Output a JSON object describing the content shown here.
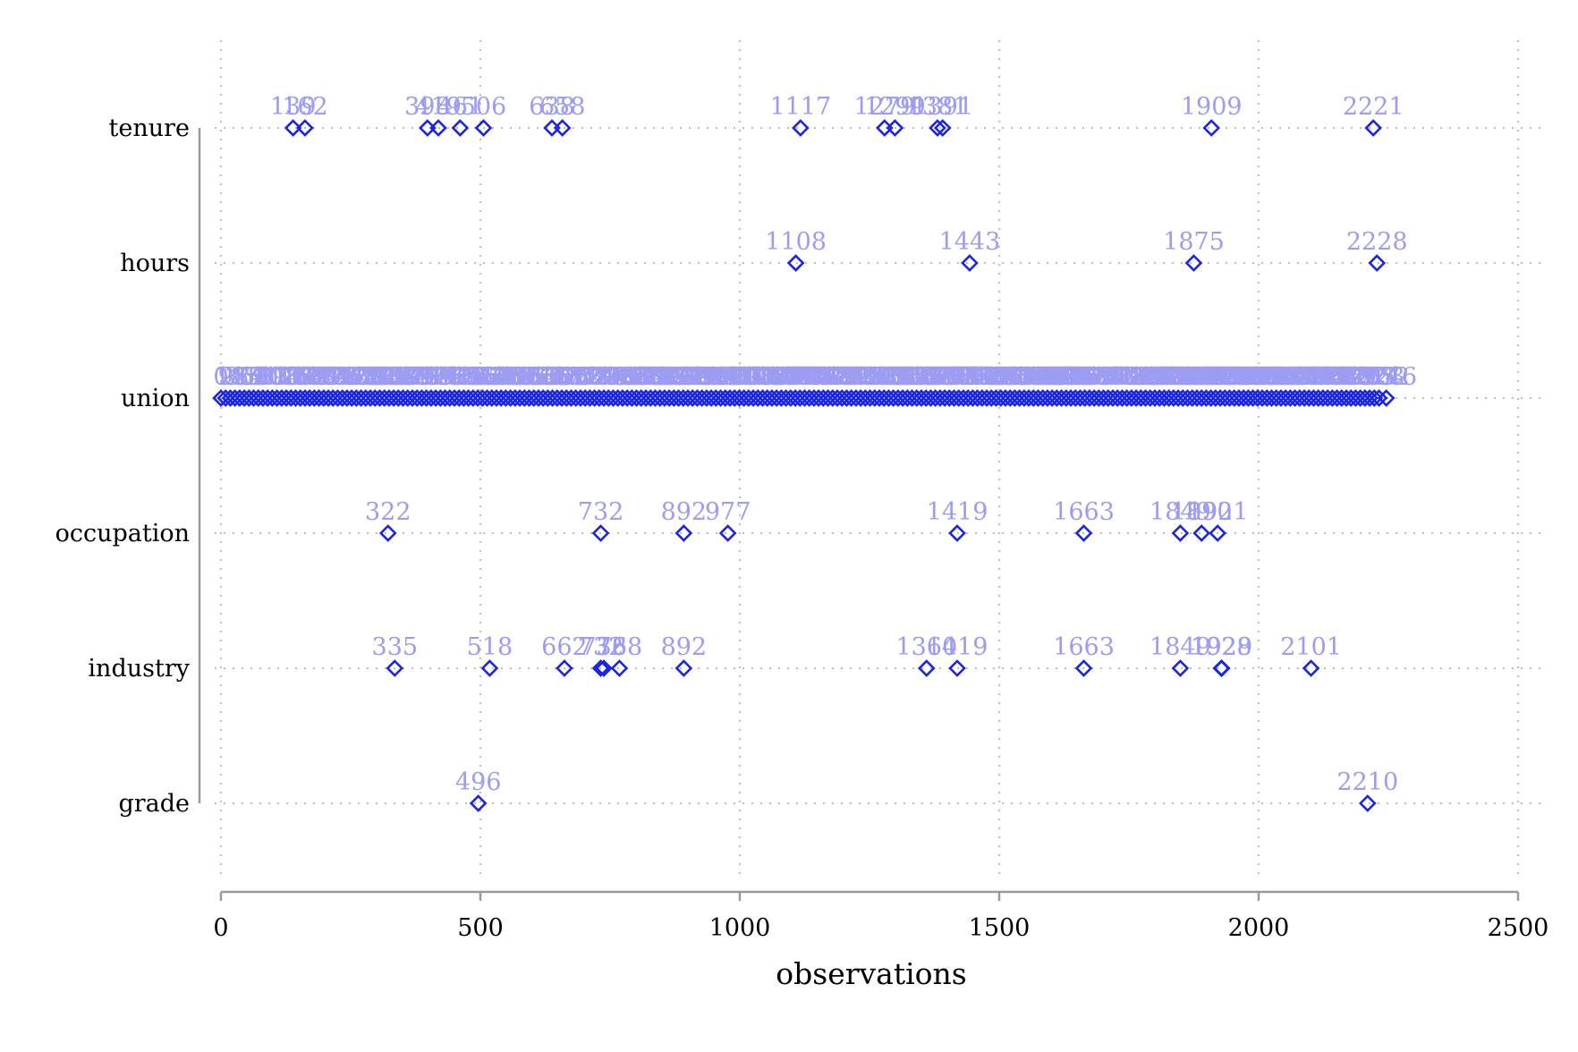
{
  "chart_data": {
    "type": "scatter",
    "title": "",
    "xlabel": "observations",
    "ylabel": "",
    "xlim": [
      0,
      2500
    ],
    "xticks": [
      "0",
      "500",
      "1000",
      "1500",
      "2000",
      "2500"
    ],
    "categories": [
      "tenure",
      "hours",
      "union",
      "occupation",
      "industry",
      "grade"
    ],
    "grid": true,
    "series": [
      {
        "category": "tenure",
        "points": [
          139,
          162,
          398,
          419,
          461,
          506,
          638,
          658,
          1117,
          1279,
          1299,
          1381,
          1391,
          1909,
          2221
        ]
      },
      {
        "category": "hours",
        "points": [
          1108,
          1443,
          1875,
          2228
        ]
      },
      {
        "category": "union",
        "points": [
          0,
          9,
          18,
          27,
          36,
          45,
          54,
          63,
          72,
          81,
          90,
          99,
          108,
          117,
          126,
          135,
          144,
          153,
          162,
          171,
          180,
          189,
          198,
          207,
          216,
          225,
          234,
          243,
          252,
          261,
          270,
          279,
          288,
          297,
          306,
          315,
          324,
          333,
          342,
          351,
          360,
          369,
          378,
          387,
          396,
          405,
          414,
          423,
          432,
          441,
          450,
          459,
          468,
          477,
          486,
          495,
          504,
          513,
          522,
          531,
          540,
          549,
          558,
          567,
          576,
          585,
          594,
          603,
          612,
          621,
          630,
          639,
          648,
          657,
          666,
          675,
          684,
          693,
          702,
          711,
          720,
          729,
          738,
          747,
          756,
          765,
          774,
          783,
          792,
          801,
          810,
          819,
          828,
          837,
          846,
          855,
          864,
          873,
          882,
          891,
          900,
          909,
          918,
          927,
          936,
          945,
          954,
          963,
          972,
          981,
          990,
          999,
          1008,
          1017,
          1026,
          1035,
          1044,
          1053,
          1062,
          1071,
          1080,
          1089,
          1098,
          1107,
          1116,
          1125,
          1134,
          1143,
          1152,
          1161,
          1170,
          1179,
          1188,
          1197,
          1206,
          1215,
          1224,
          1233,
          1242,
          1251,
          1260,
          1269,
          1278,
          1287,
          1296,
          1305,
          1314,
          1323,
          1332,
          1341,
          1350,
          1359,
          1368,
          1377,
          1386,
          1395,
          1404,
          1413,
          1422,
          1431,
          1440,
          1449,
          1458,
          1467,
          1476,
          1485,
          1494,
          1503,
          1512,
          1521,
          1530,
          1539,
          1548,
          1557,
          1566,
          1575,
          1584,
          1593,
          1602,
          1611,
          1620,
          1629,
          1638,
          1647,
          1656,
          1665,
          1674,
          1683,
          1692,
          1701,
          1710,
          1719,
          1728,
          1737,
          1746,
          1755,
          1764,
          1773,
          1782,
          1791,
          1800,
          1809,
          1818,
          1827,
          1836,
          1845,
          1854,
          1863,
          1872,
          1881,
          1890,
          1899,
          1908,
          1917,
          1926,
          1935,
          1944,
          1953,
          1962,
          1971,
          1980,
          1989,
          1998,
          2007,
          2016,
          2025,
          2034,
          2043,
          2052,
          2061,
          2070,
          2079,
          2088,
          2097,
          2106,
          2115,
          2124,
          2133,
          2142,
          2151,
          2160,
          2169,
          2178,
          2187,
          2196,
          2205,
          2214,
          2223,
          2232,
          2246
        ]
      },
      {
        "category": "occupation",
        "points": [
          322,
          732,
          892,
          977,
          1419,
          1663,
          1849,
          1890,
          1921
        ]
      },
      {
        "category": "industry",
        "points": [
          335,
          518,
          662,
          732,
          738,
          768,
          892,
          1360,
          1419,
          1663,
          1849,
          1928,
          1929,
          2101
        ]
      },
      {
        "category": "grade",
        "points": [
          496,
          2210
        ]
      }
    ]
  }
}
